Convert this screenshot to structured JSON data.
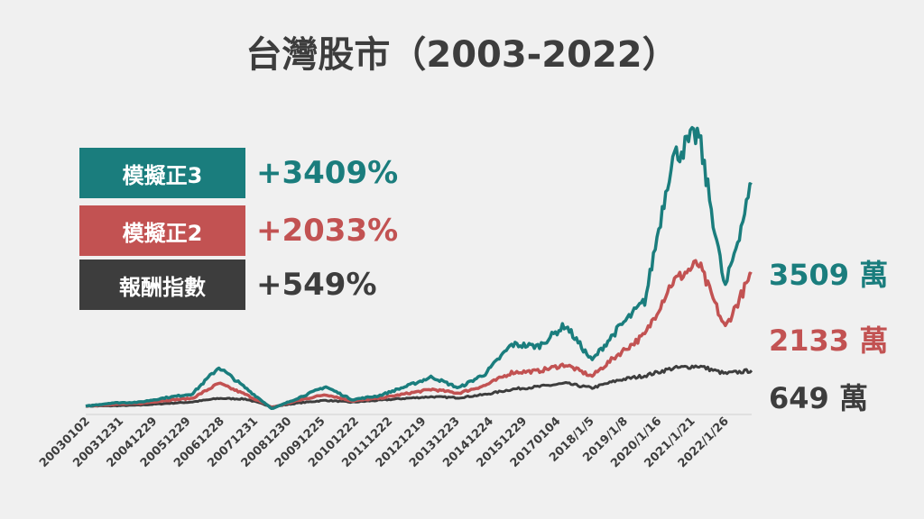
{
  "title": "台灣股市（2003-2022）",
  "legend": [
    {
      "label": "模擬正3",
      "pct": "+3409%",
      "color": "#1a7d7d"
    },
    {
      "label": "模擬正2",
      "pct": "+2033%",
      "color": "#c25252"
    },
    {
      "label": "報酬指數",
      "pct": "+549%",
      "color": "#3d3d3d"
    }
  ],
  "end_labels": [
    "3509 萬",
    "2133 萬",
    "649 萬"
  ],
  "chart_data": {
    "type": "line",
    "title": "台灣股市（2003-2022）",
    "xlabel": "",
    "ylabel": "",
    "grid": false,
    "legend_position": "top-left",
    "x_tick_labels": [
      "20030102",
      "20031231",
      "20041229",
      "20051229",
      "20061228",
      "20071231",
      "20081230",
      "20091225",
      "20101222",
      "20111222",
      "20121219",
      "20131223",
      "20141224",
      "20151229",
      "20170104",
      "2018/1/5",
      "2019/1/8",
      "2020/1/16",
      "2021/1/21",
      "2022/1/26"
    ],
    "ylim": [
      0,
      4200
    ],
    "series": [
      {
        "name": "模擬正3",
        "color": "#1a7d7d",
        "values": [
          100,
          150,
          160,
          230,
          290,
          700,
          380,
          60,
          230,
          400,
          200,
          260,
          400,
          550,
          380,
          600,
          1050,
          1020,
          1350,
          800,
          1300,
          1720,
          3900,
          4300,
          1900,
          3509
        ]
      },
      {
        "name": "模擬正2",
        "color": "#c25252",
        "values": [
          100,
          130,
          140,
          190,
          220,
          450,
          280,
          80,
          190,
          280,
          180,
          220,
          290,
          360,
          300,
          420,
          620,
          640,
          740,
          560,
          900,
          1200,
          2000,
          2300,
          1300,
          2133
        ]
      },
      {
        "name": "報酬指數",
        "color": "#3d3d3d",
        "values": [
          100,
          105,
          115,
          140,
          165,
          220,
          210,
          90,
          150,
          190,
          160,
          190,
          220,
          245,
          230,
          280,
          360,
          400,
          450,
          380,
          500,
          570,
          680,
          720,
          600,
          649
        ]
      }
    ]
  }
}
